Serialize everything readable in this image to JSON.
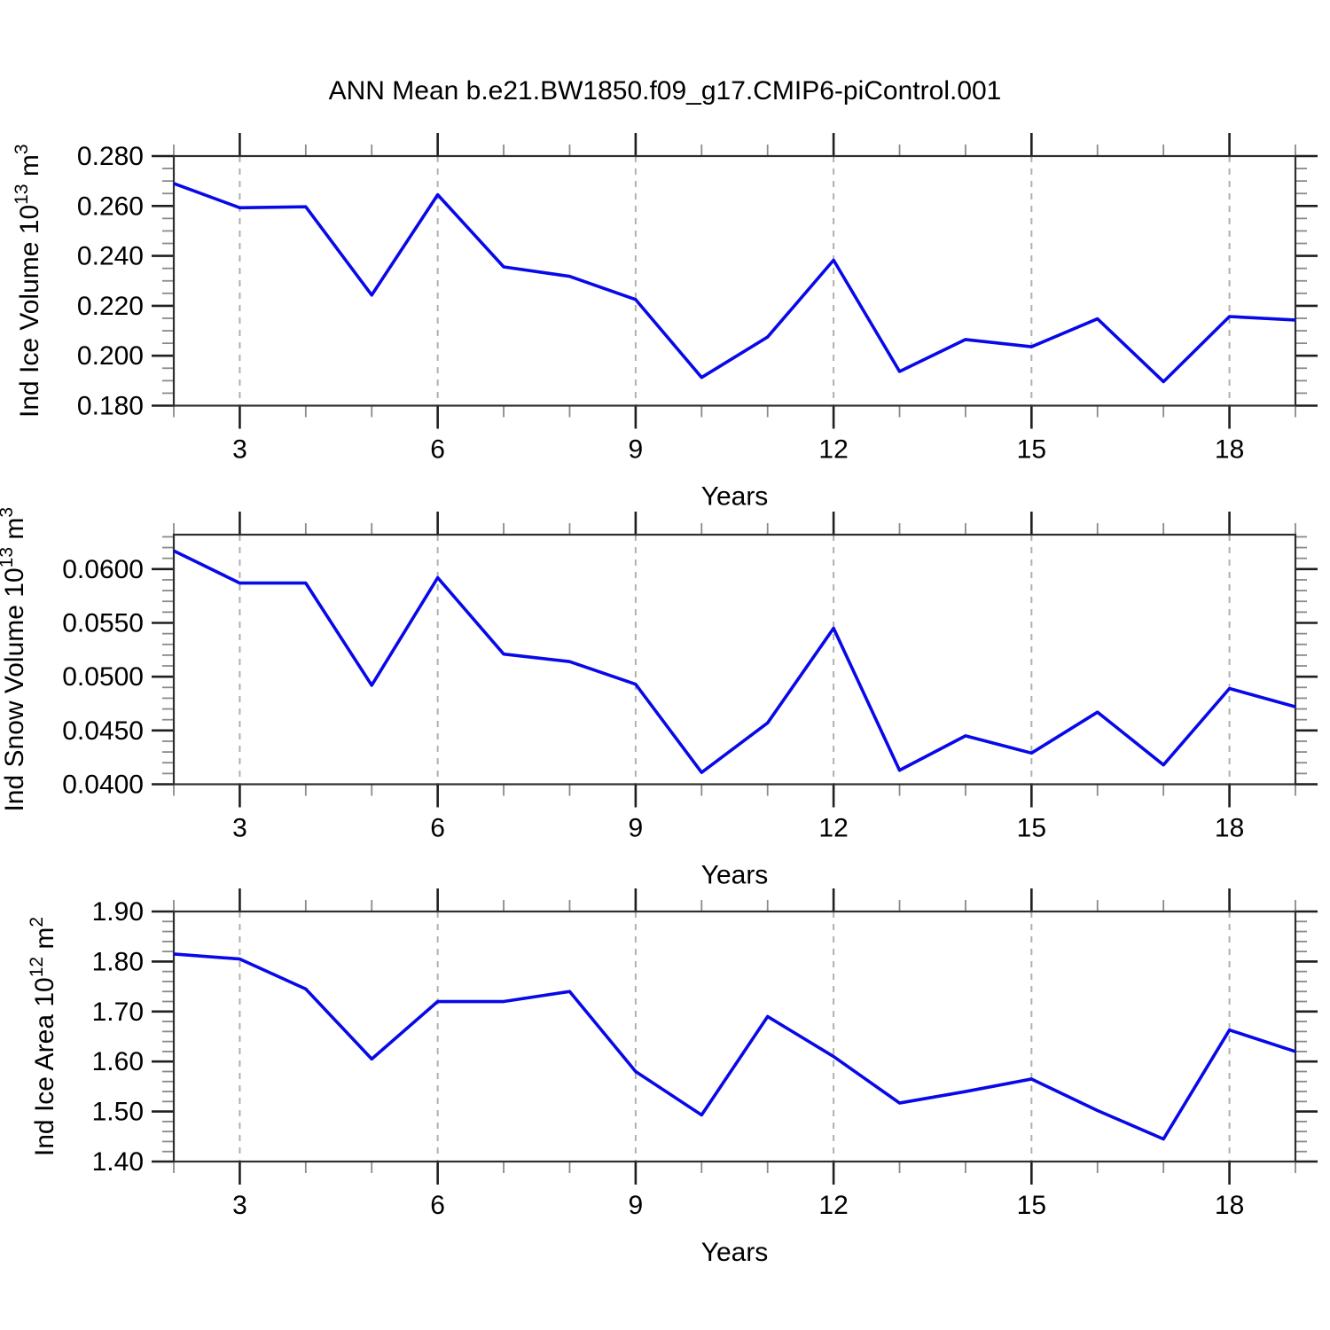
{
  "title": "ANN Mean b.e21.BW1850.f09_g17.CMIP6-piControl.001",
  "colors": {
    "line": "#0808e8",
    "grid": "#b0b0b0",
    "border": "#2f2f2f",
    "tick_major": "#1f1f1f",
    "tick_minor": "#8a8a8a",
    "text": "#000000",
    "background": "#ffffff"
  },
  "x_axis": {
    "label": "Years",
    "range": [
      2,
      19
    ],
    "major_ticks": [
      3,
      6,
      9,
      12,
      15,
      18
    ],
    "minor_every": 1,
    "gridlines_at": [
      3,
      6,
      9,
      12,
      15,
      18
    ]
  },
  "chart_data": [
    {
      "type": "line",
      "ylabel": "Ind Ice Volume 10¹³ m³",
      "ylabel_parts": [
        {
          "t": "Ind Ice Volume 10"
        },
        {
          "sup": "13"
        },
        {
          "t": " m"
        },
        {
          "sup": "3"
        }
      ],
      "xlabel": "Years",
      "x": [
        2,
        3,
        4,
        5,
        6,
        7,
        8,
        9,
        10,
        11,
        12,
        13,
        14,
        15,
        16,
        17,
        18,
        19
      ],
      "values": [
        0.269,
        0.2593,
        0.2597,
        0.2243,
        0.2645,
        0.2356,
        0.2318,
        0.2225,
        0.1913,
        0.2075,
        0.2383,
        0.1937,
        0.2065,
        0.2036,
        0.2148,
        0.1896,
        0.2157,
        0.2143
      ],
      "ylim": [
        0.18,
        0.28
      ],
      "yticks": [
        {
          "v": 0.18,
          "label": "0.180"
        },
        {
          "v": 0.2,
          "label": "0.200"
        },
        {
          "v": 0.22,
          "label": "0.220"
        },
        {
          "v": 0.24,
          "label": "0.240"
        },
        {
          "v": 0.26,
          "label": "0.260"
        },
        {
          "v": 0.28,
          "label": "0.280"
        }
      ],
      "y_minor_step": 0.005
    },
    {
      "type": "line",
      "ylabel": "Ind Snow Volume 10¹³ m³",
      "ylabel_parts": [
        {
          "t": "Ind Snow Volume 10"
        },
        {
          "sup": "13"
        },
        {
          "t": " m"
        },
        {
          "sup": "3"
        }
      ],
      "xlabel": "Years",
      "x": [
        2,
        3,
        4,
        5,
        6,
        7,
        8,
        9,
        10,
        11,
        12,
        13,
        14,
        15,
        16,
        17,
        18,
        19
      ],
      "values": [
        0.0617,
        0.0587,
        0.0587,
        0.0492,
        0.0592,
        0.0521,
        0.0514,
        0.0493,
        0.0411,
        0.0457,
        0.0545,
        0.0413,
        0.0445,
        0.0429,
        0.0467,
        0.0418,
        0.0489,
        0.0472
      ],
      "ylim": [
        0.04,
        0.0632
      ],
      "yticks": [
        {
          "v": 0.04,
          "label": "0.0400"
        },
        {
          "v": 0.045,
          "label": "0.0450"
        },
        {
          "v": 0.05,
          "label": "0.0500"
        },
        {
          "v": 0.055,
          "label": "0.0550"
        },
        {
          "v": 0.06,
          "label": "0.0600"
        }
      ],
      "y_minor_step": 0.001
    },
    {
      "type": "line",
      "ylabel": "Ind Ice Area 10¹² m²",
      "ylabel_parts": [
        {
          "t": "Ind Ice Area 10"
        },
        {
          "sup": "12"
        },
        {
          "t": " m"
        },
        {
          "sup": "2"
        }
      ],
      "xlabel": "Years",
      "x": [
        2,
        3,
        4,
        5,
        6,
        7,
        8,
        9,
        10,
        11,
        12,
        13,
        14,
        15,
        16,
        17,
        18,
        19
      ],
      "values": [
        1.815,
        1.805,
        1.745,
        1.605,
        1.72,
        1.72,
        1.74,
        1.58,
        1.493,
        1.69,
        1.61,
        1.517,
        1.54,
        1.565,
        1.502,
        1.445,
        1.663,
        1.62
      ],
      "ylim": [
        1.4,
        1.9
      ],
      "yticks": [
        {
          "v": 1.4,
          "label": "1.40"
        },
        {
          "v": 1.5,
          "label": "1.50"
        },
        {
          "v": 1.6,
          "label": "1.60"
        },
        {
          "v": 1.7,
          "label": "1.70"
        },
        {
          "v": 1.8,
          "label": "1.80"
        },
        {
          "v": 1.9,
          "label": "1.90"
        }
      ],
      "y_minor_step": 0.02
    }
  ]
}
